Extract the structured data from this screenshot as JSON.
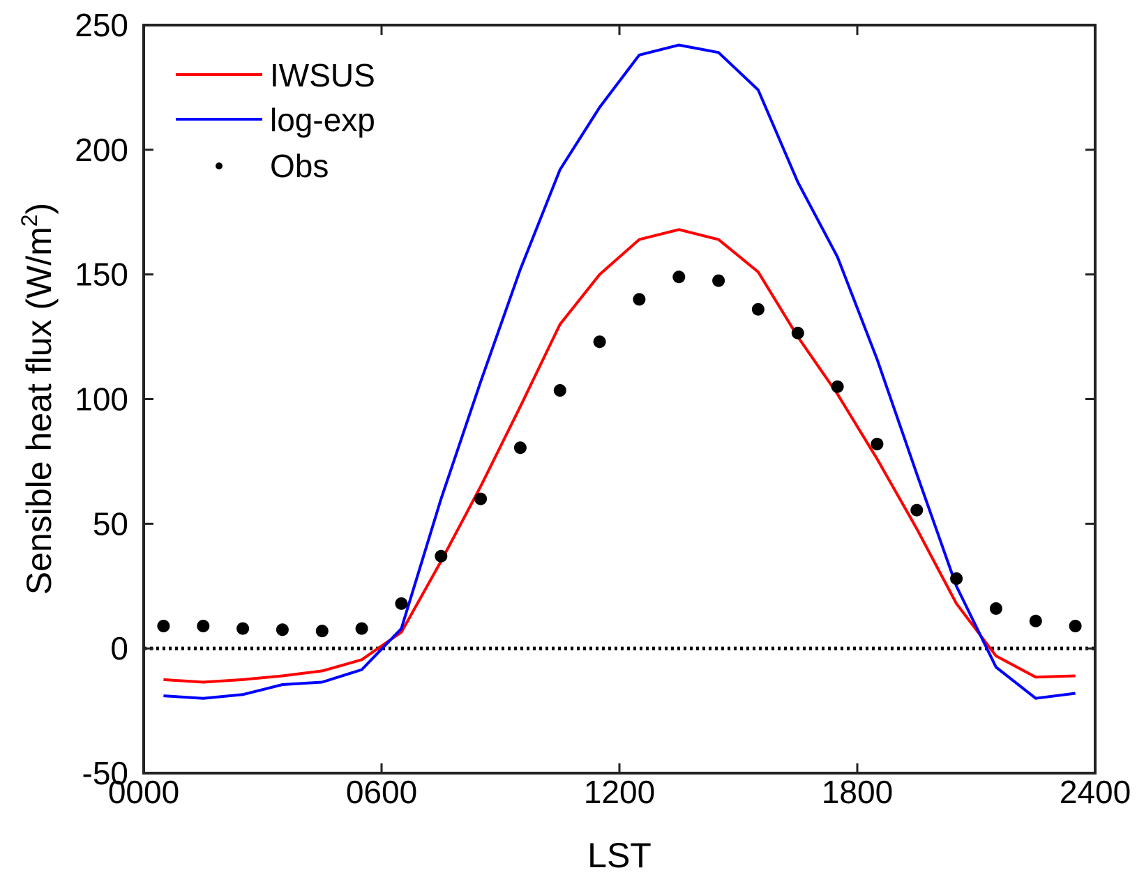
{
  "chart_data": {
    "type": "line",
    "xlabel": "LST",
    "ylabel": "Sensible heat flux (W/m",
    "ylabel_sup": "2",
    "ylabel_close": ")",
    "xlim": [
      0,
      24
    ],
    "ylim": [
      -50,
      250
    ],
    "x_ticks": [
      0,
      6,
      12,
      18,
      24
    ],
    "x_tick_labels": [
      "0000",
      "0600",
      "1200",
      "1800",
      "2400"
    ],
    "y_ticks": [
      -50,
      0,
      50,
      100,
      150,
      200,
      250
    ],
    "y_tick_labels": [
      "-50",
      "0",
      "50",
      "100",
      "150",
      "200",
      "250"
    ],
    "zero_line": true,
    "grid": false,
    "legend_position": "top-left",
    "colors": {
      "IWSUS": "#ff0000",
      "log-exp": "#0000ff",
      "Obs": "#000000"
    },
    "x": [
      0.5,
      1.5,
      2.5,
      3.5,
      4.5,
      5.5,
      6.5,
      7.5,
      8.5,
      9.5,
      10.5,
      11.5,
      12.5,
      13.5,
      14.5,
      15.5,
      16.5,
      17.5,
      18.5,
      19.5,
      20.5,
      21.5,
      22.5,
      23.5
    ],
    "series": [
      {
        "name": "IWSUS",
        "style": "line",
        "values": [
          -12.5,
          -13.5,
          -12.5,
          -11,
          -9,
          -4.5,
          6.5,
          35,
          65,
          97,
          130,
          150,
          164,
          168,
          164,
          151,
          125,
          102,
          76,
          48,
          18,
          -3,
          -11.5,
          -11
        ]
      },
      {
        "name": "log-exp",
        "style": "line",
        "values": [
          -19,
          -20,
          -18.5,
          -14.5,
          -13.5,
          -8.5,
          8,
          60,
          107,
          152,
          192,
          217,
          238,
          242,
          239,
          224,
          187,
          157,
          116,
          70,
          25,
          -7.5,
          -20,
          -18
        ]
      },
      {
        "name": "Obs",
        "style": "points",
        "values": [
          9,
          9,
          8,
          7.5,
          7,
          8,
          18,
          37,
          60,
          80.5,
          103.5,
          123,
          140,
          149,
          147.5,
          136,
          126.5,
          105,
          82,
          55.5,
          28,
          16,
          11,
          9
        ]
      }
    ]
  }
}
